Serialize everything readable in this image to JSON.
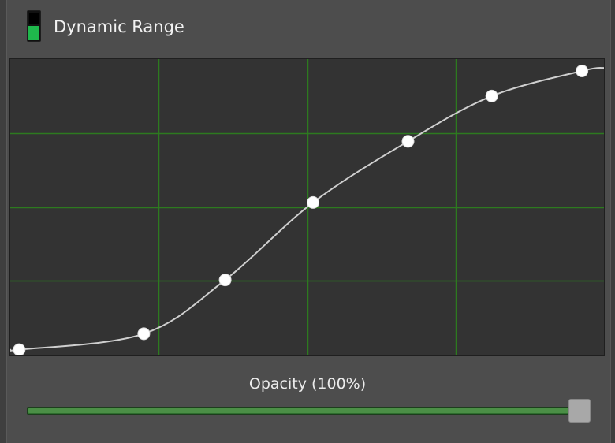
{
  "panel": {
    "title": "Dynamic Range",
    "toggle_icon": "level-toggle-icon",
    "toggle_colors": {
      "top": "#000000",
      "bottom": "#1fb84c"
    }
  },
  "curve": {
    "grid_color": "#2d7a1f",
    "curve_color": "#cfcfcf",
    "point_color": "#ffffff",
    "background": "#333333",
    "points": [
      [
        0.015,
        0.983
      ],
      [
        0.225,
        0.929
      ],
      [
        0.362,
        0.747
      ],
      [
        0.51,
        0.485
      ],
      [
        0.67,
        0.278
      ],
      [
        0.811,
        0.125
      ],
      [
        0.963,
        0.04
      ]
    ]
  },
  "opacity": {
    "label": "Opacity (100%)",
    "value": 1.0
  }
}
